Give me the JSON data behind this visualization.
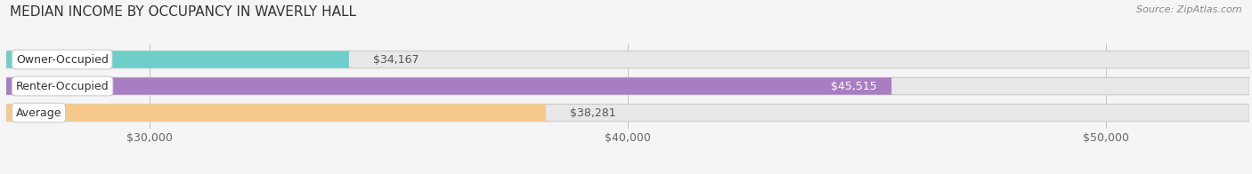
{
  "title": "MEDIAN INCOME BY OCCUPANCY IN WAVERLY HALL",
  "source": "Source: ZipAtlas.com",
  "categories": [
    "Owner-Occupied",
    "Renter-Occupied",
    "Average"
  ],
  "values": [
    34167,
    45515,
    38281
  ],
  "labels": [
    "$34,167",
    "$45,515",
    "$38,281"
  ],
  "bar_colors": [
    "#6ecfca",
    "#a87dc2",
    "#f6c98b"
  ],
  "bar_bg_color": "#e8e8e8",
  "label_in_bar": [
    false,
    true,
    false
  ],
  "label_text_colors_in": [
    "#555555",
    "#ffffff",
    "#555555"
  ],
  "xmin": 27000,
  "xmax": 53000,
  "xticks": [
    30000,
    40000,
    50000
  ],
  "xtick_labels": [
    "$30,000",
    "$40,000",
    "$50,000"
  ],
  "title_fontsize": 11,
  "source_fontsize": 8,
  "tick_fontsize": 9,
  "bar_label_fontsize": 9,
  "category_fontsize": 9,
  "background_color": "#f5f5f5",
  "bar_height": 0.62,
  "pill_bg": "#ffffff",
  "pill_border": "#cccccc"
}
